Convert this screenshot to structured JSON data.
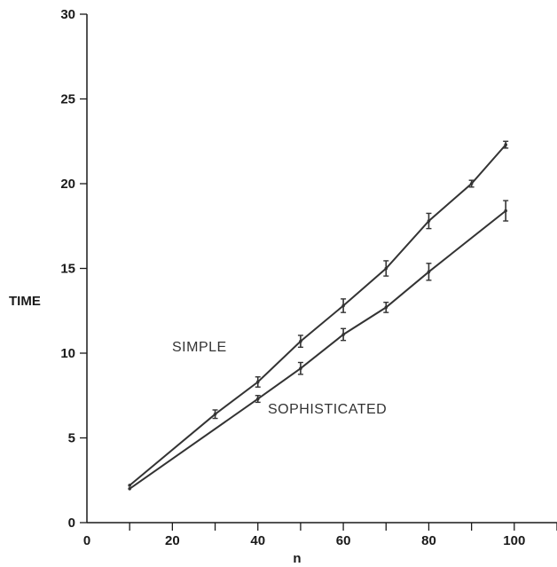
{
  "chart_data": {
    "type": "line",
    "title": "",
    "xlabel": "n",
    "ylabel": "TIME",
    "xlim": [
      0,
      110
    ],
    "ylim": [
      0,
      30
    ],
    "xticks": [
      0,
      20,
      40,
      60,
      80,
      100
    ],
    "yticks": [
      0,
      5,
      10,
      15,
      20,
      25,
      30
    ],
    "xtick_labels": [
      "0",
      "20",
      "40",
      "60",
      "80",
      "100"
    ],
    "ytick_labels": [
      "0",
      "5",
      "10",
      "15",
      "20",
      "25",
      "30"
    ],
    "grid": false,
    "series": [
      {
        "name": "SIMPLE",
        "color": "#333333",
        "x": [
          10,
          30,
          40,
          50,
          60,
          70,
          80,
          90,
          98
        ],
        "y": [
          2.2,
          6.4,
          8.3,
          10.7,
          12.8,
          15.0,
          17.8,
          20.0,
          22.3
        ],
        "err": [
          0,
          0.25,
          0.3,
          0.35,
          0.4,
          0.45,
          0.45,
          0.2,
          0.2
        ]
      },
      {
        "name": "SOPHISTICATED",
        "color": "#333333",
        "x": [
          10,
          40,
          50,
          60,
          70,
          80,
          98
        ],
        "y": [
          2.0,
          7.3,
          9.1,
          11.1,
          12.7,
          14.8,
          18.4
        ],
        "err": [
          0,
          0.2,
          0.35,
          0.35,
          0.3,
          0.5,
          0.6
        ]
      }
    ]
  }
}
